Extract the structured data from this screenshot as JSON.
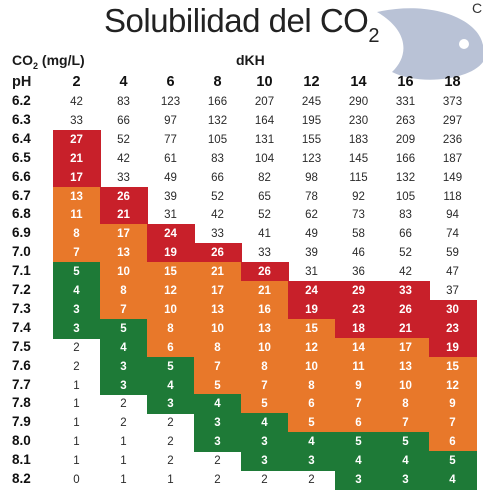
{
  "title": {
    "text": "Solubilidad del CO",
    "sub": "2"
  },
  "logo_letter": "C",
  "header": {
    "co2_prefix": "CO",
    "co2_sub": "2",
    "co2_suffix": " (mg/L)",
    "dkh_label": "dKH",
    "ph_label": "pH"
  },
  "colors": {
    "red": "#c8202a",
    "orange": "#e8782a",
    "green": "#1e7a37",
    "fish": "#b9c2d6"
  },
  "table": {
    "dkh": [
      "2",
      "4",
      "6",
      "8",
      "10",
      "12",
      "14",
      "16",
      "18"
    ],
    "rows": [
      {
        "ph": "6.2",
        "values": [
          "42",
          "83",
          "123",
          "166",
          "207",
          "245",
          "290",
          "331",
          "373"
        ]
      },
      {
        "ph": "6.3",
        "values": [
          "33",
          "66",
          "97",
          "132",
          "164",
          "195",
          "230",
          "263",
          "297"
        ]
      },
      {
        "ph": "6.4",
        "values": [
          "27",
          "52",
          "77",
          "105",
          "131",
          "155",
          "183",
          "209",
          "236"
        ]
      },
      {
        "ph": "6.5",
        "values": [
          "21",
          "42",
          "61",
          "83",
          "104",
          "123",
          "145",
          "166",
          "187"
        ]
      },
      {
        "ph": "6.6",
        "values": [
          "17",
          "33",
          "49",
          "66",
          "82",
          "98",
          "115",
          "132",
          "149"
        ]
      },
      {
        "ph": "6.7",
        "values": [
          "13",
          "26",
          "39",
          "52",
          "65",
          "78",
          "92",
          "105",
          "118"
        ]
      },
      {
        "ph": "6.8",
        "values": [
          "11",
          "21",
          "31",
          "42",
          "52",
          "62",
          "73",
          "83",
          "94"
        ]
      },
      {
        "ph": "6.9",
        "values": [
          "8",
          "17",
          "24",
          "33",
          "41",
          "49",
          "58",
          "66",
          "74"
        ]
      },
      {
        "ph": "7.0",
        "values": [
          "7",
          "13",
          "19",
          "26",
          "33",
          "39",
          "46",
          "52",
          "59"
        ]
      },
      {
        "ph": "7.1",
        "values": [
          "5",
          "10",
          "15",
          "21",
          "26",
          "31",
          "36",
          "42",
          "47"
        ]
      },
      {
        "ph": "7.2",
        "values": [
          "4",
          "8",
          "12",
          "17",
          "21",
          "24",
          "29",
          "33",
          "37"
        ]
      },
      {
        "ph": "7.3",
        "values": [
          "3",
          "7",
          "10",
          "13",
          "16",
          "19",
          "23",
          "26",
          "30"
        ]
      },
      {
        "ph": "7.4",
        "values": [
          "3",
          "5",
          "8",
          "10",
          "13",
          "15",
          "18",
          "21",
          "23"
        ]
      },
      {
        "ph": "7.5",
        "values": [
          "2",
          "4",
          "6",
          "8",
          "10",
          "12",
          "14",
          "17",
          "19"
        ]
      },
      {
        "ph": "7.6",
        "values": [
          "2",
          "3",
          "5",
          "7",
          "8",
          "10",
          "11",
          "13",
          "15"
        ]
      },
      {
        "ph": "7.7",
        "values": [
          "1",
          "3",
          "4",
          "5",
          "7",
          "8",
          "9",
          "10",
          "12"
        ]
      },
      {
        "ph": "7.8",
        "values": [
          "1",
          "2",
          "3",
          "4",
          "5",
          "6",
          "7",
          "8",
          "9"
        ]
      },
      {
        "ph": "7.9",
        "values": [
          "1",
          "2",
          "2",
          "3",
          "4",
          "5",
          "6",
          "7",
          "7"
        ]
      },
      {
        "ph": "8.0",
        "values": [
          "1",
          "1",
          "2",
          "3",
          "3",
          "4",
          "5",
          "5",
          "6"
        ]
      },
      {
        "ph": "8.1",
        "values": [
          "1",
          "1",
          "2",
          "2",
          "3",
          "3",
          "4",
          "4",
          "5"
        ]
      },
      {
        "ph": "8.2",
        "values": [
          "0",
          "1",
          "1",
          "2",
          "2",
          "2",
          "3",
          "3",
          "4"
        ]
      }
    ],
    "shading": [
      "wwwwwwwww",
      "wwwwwwwww",
      "rwwwwwwww",
      "rwwwwwwww",
      "rwwwwwwww",
      "orwwwwwww",
      "orwwwwwww",
      "oorwwwwww",
      "oorrwwwww",
      "gooorwwww",
      "goooorrrw",
      "goooorrrr",
      "ggoooorrr",
      "wgoooooor",
      "wggoooooo",
      "wggoooooo",
      "wwggooooo",
      "wwwggoooo",
      "wwwgggggo",
      "wwwwggggg",
      "wwwwwwggg"
    ]
  }
}
